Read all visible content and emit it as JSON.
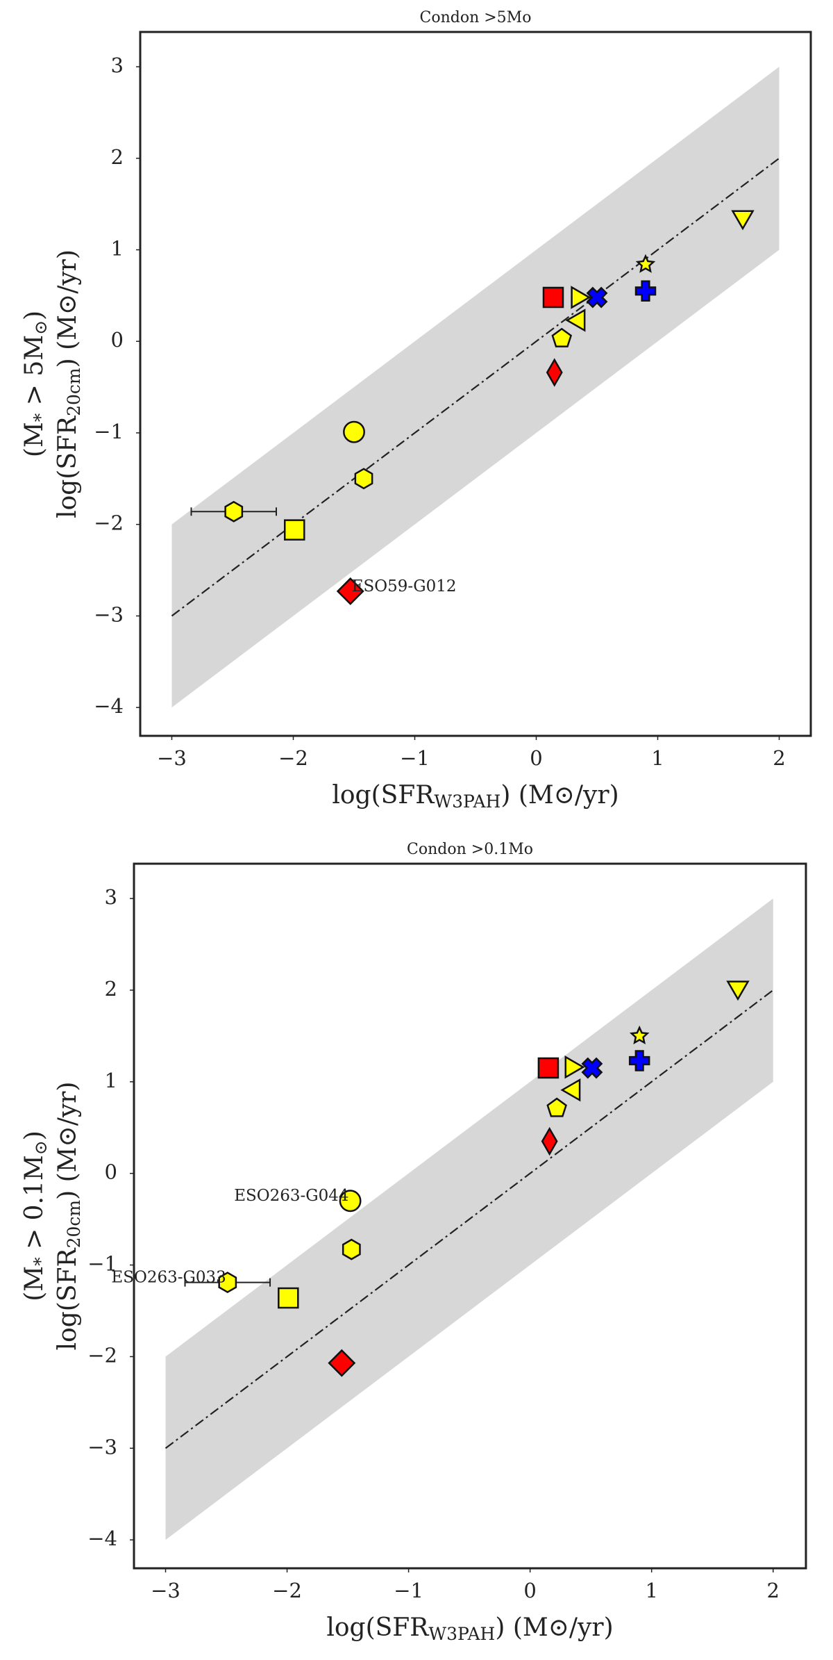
{
  "chart_data": [
    {
      "type": "scatter",
      "title": "Condon >5Mo",
      "xlabel": [
        "log(SFR",
        "W3PAH",
        ") (M⊙/yr)"
      ],
      "ylabel": [
        [
          "(M",
          "*",
          " > 5M",
          "⊙",
          ")"
        ],
        [
          "log(SFR",
          "20cm",
          ") (M⊙/yr)"
        ]
      ],
      "xlim": [
        -3.26,
        2.26
      ],
      "ylim": [
        -4.31,
        3.38
      ],
      "xticks": [
        -3,
        -2,
        -1,
        0,
        1,
        2
      ],
      "yticks": [
        -4,
        -3,
        -2,
        -1,
        0,
        1,
        2,
        3
      ],
      "band": {
        "x": [
          -3,
          2
        ],
        "lower": [
          -4,
          1
        ],
        "upper": [
          -2,
          3
        ],
        "color": "#d3d3d3"
      },
      "line": {
        "x": [
          -3,
          2
        ],
        "y": [
          -3,
          2
        ],
        "color": "#222222"
      },
      "points": [
        {
          "x": -2.49,
          "y": -1.86,
          "xerr": 0.35,
          "marker": "hexagon",
          "color": "#ffff00"
        },
        {
          "x": -1.99,
          "y": -2.06,
          "marker": "square",
          "color": "#ffff00"
        },
        {
          "x": -1.5,
          "y": -0.99,
          "marker": "circle",
          "color": "#ffff00"
        },
        {
          "x": -1.42,
          "y": -1.5,
          "marker": "hexagon",
          "color": "#ffff00"
        },
        {
          "x": -1.53,
          "y": -2.73,
          "marker": "diamond",
          "color": "#ff0000",
          "label": "ESO59-G012"
        },
        {
          "x": 0.14,
          "y": 0.48,
          "marker": "square",
          "color": "#ff0000"
        },
        {
          "x": 0.34,
          "y": 0.48,
          "marker": "triangle_right",
          "color": "#ffff00"
        },
        {
          "x": 0.5,
          "y": 0.48,
          "marker": "x",
          "color": "#0000ff"
        },
        {
          "x": 0.35,
          "y": 0.23,
          "marker": "triangle_left",
          "color": "#ffff00"
        },
        {
          "x": 0.21,
          "y": 0.03,
          "marker": "pentagon",
          "color": "#ffff00"
        },
        {
          "x": 0.15,
          "y": -0.34,
          "marker": "thin_diamond",
          "color": "#ff0000"
        },
        {
          "x": 0.9,
          "y": 0.84,
          "marker": "star",
          "color": "#ffff00"
        },
        {
          "x": 0.9,
          "y": 0.55,
          "marker": "plus",
          "color": "#0000ff"
        },
        {
          "x": 1.7,
          "y": 1.36,
          "marker": "triangle_down",
          "color": "#ffff00"
        }
      ]
    },
    {
      "type": "scatter",
      "title": "Condon >0.1Mo",
      "xlabel": [
        "log(SFR",
        "W3PAH",
        ") (M⊙/yr)"
      ],
      "ylabel": [
        [
          "(M",
          "*",
          " > 0.1M",
          "⊙",
          ")"
        ],
        [
          "log(SFR",
          "20cm",
          ") (M⊙/yr)"
        ]
      ],
      "xlim": [
        -3.26,
        2.27
      ],
      "ylim": [
        -4.31,
        3.38
      ],
      "xticks": [
        -3,
        -2,
        -1,
        0,
        1,
        2
      ],
      "yticks": [
        -4,
        -3,
        -2,
        -1,
        0,
        1,
        2,
        3
      ],
      "band": {
        "x": [
          -3,
          2
        ],
        "lower": [
          -4,
          1
        ],
        "upper": [
          -2,
          3
        ],
        "color": "#d3d3d3"
      },
      "line": {
        "x": [
          -3,
          2
        ],
        "y": [
          -3,
          2
        ],
        "color": "#222222"
      },
      "points": [
        {
          "x": -2.49,
          "y": -1.19,
          "xerr": 0.35,
          "marker": "hexagon",
          "color": "#ffff00",
          "label": "ESO263-G033"
        },
        {
          "x": -1.99,
          "y": -1.36,
          "marker": "square",
          "color": "#ffff00"
        },
        {
          "x": -1.48,
          "y": -0.3,
          "marker": "circle",
          "color": "#ffff00",
          "label": "ESO263-G044"
        },
        {
          "x": -1.47,
          "y": -0.83,
          "marker": "hexagon",
          "color": "#ffff00"
        },
        {
          "x": -1.55,
          "y": -2.07,
          "marker": "diamond",
          "color": "#ff0000"
        },
        {
          "x": 0.15,
          "y": 1.15,
          "marker": "square",
          "color": "#ff0000"
        },
        {
          "x": 0.34,
          "y": 1.16,
          "marker": "triangle_right",
          "color": "#ffff00"
        },
        {
          "x": 0.51,
          "y": 1.15,
          "marker": "x",
          "color": "#0000ff"
        },
        {
          "x": 0.36,
          "y": 0.91,
          "marker": "triangle_left",
          "color": "#ffff00"
        },
        {
          "x": 0.22,
          "y": 0.71,
          "marker": "pentagon",
          "color": "#ffff00"
        },
        {
          "x": 0.16,
          "y": 0.35,
          "marker": "thin_diamond",
          "color": "#ff0000"
        },
        {
          "x": 0.9,
          "y": 1.5,
          "marker": "star",
          "color": "#ffff00"
        },
        {
          "x": 0.9,
          "y": 1.23,
          "marker": "plus",
          "color": "#0000ff"
        },
        {
          "x": 1.71,
          "y": 2.03,
          "marker": "triangle_down",
          "color": "#ffff00"
        }
      ]
    }
  ]
}
